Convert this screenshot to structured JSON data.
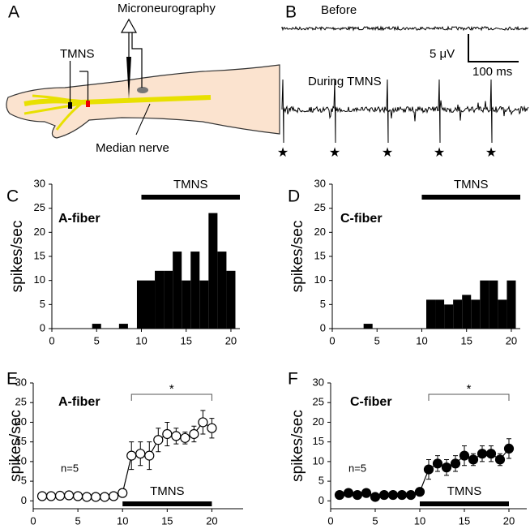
{
  "panel_a": {
    "label": "A",
    "microneurography": "Microneurography",
    "tmns": "TMNS",
    "median_nerve": "Median nerve"
  },
  "panel_b": {
    "label": "B",
    "before": "Before",
    "during": "During TMNS",
    "voltage_scale": "5 μV",
    "time_scale": "100 ms"
  },
  "chart_data": [
    {
      "type": "histogram",
      "panel": "C",
      "annotation": "A-fiber",
      "ylabel": "spikes/sec",
      "color": "#000000",
      "bins": [
        0.5,
        1.5,
        2.5,
        3.5,
        4.5,
        5.5,
        6.5,
        7.5,
        8.5,
        9.5,
        10.5,
        11.5,
        12.5,
        13.5,
        14.5,
        15.5,
        16.5,
        17.5,
        18.5,
        19.5,
        20.5
      ],
      "values": [
        0,
        0,
        0,
        0,
        1,
        0,
        0,
        1,
        0,
        10,
        10,
        12,
        12,
        16,
        10,
        16,
        10,
        24,
        16,
        12
      ],
      "xlim": [
        0,
        21
      ],
      "ylim": [
        0,
        30
      ],
      "xticks": [
        0,
        5,
        10,
        15,
        20
      ],
      "yticks": [
        0,
        5,
        10,
        15,
        20,
        25,
        30
      ],
      "stimulus": {
        "label": "TMNS",
        "range": [
          10,
          21
        ]
      }
    },
    {
      "type": "histogram",
      "panel": "D",
      "annotation": "C-fiber",
      "ylabel": "spikes/sec",
      "color": "#000000",
      "bins": [
        0.5,
        1.5,
        2.5,
        3.5,
        4.5,
        5.5,
        6.5,
        7.5,
        8.5,
        9.5,
        10.5,
        11.5,
        12.5,
        13.5,
        14.5,
        15.5,
        16.5,
        17.5,
        18.5,
        19.5,
        20.5
      ],
      "values": [
        0,
        0,
        0,
        1,
        0,
        0,
        0,
        0,
        0,
        0,
        6,
        6,
        5,
        6,
        7,
        6,
        10,
        10,
        6,
        10
      ],
      "xlim": [
        0,
        21
      ],
      "ylim": [
        0,
        30
      ],
      "xticks": [
        0,
        5,
        10,
        15,
        20
      ],
      "yticks": [
        0,
        5,
        10,
        15,
        20,
        25,
        30
      ],
      "stimulus": {
        "label": "TMNS",
        "range": [
          10,
          21
        ]
      }
    },
    {
      "type": "line",
      "panel": "E",
      "annotation": "A-fiber",
      "n_label": "n=5",
      "ylabel": "spikes/sec",
      "marker": "open",
      "x": [
        1,
        2,
        3,
        4,
        5,
        6,
        7,
        8,
        9,
        10,
        11,
        12,
        13,
        14,
        15,
        16,
        17,
        18,
        19,
        20
      ],
      "values": [
        1.2,
        1.2,
        1.3,
        1.4,
        1.2,
        1,
        1,
        1,
        1.2,
        2,
        11.5,
        12,
        11.5,
        15.5,
        17,
        16.5,
        16,
        17,
        20,
        18.5
      ],
      "errors": [
        0.3,
        0.3,
        0.3,
        0.3,
        0.3,
        0.3,
        0.3,
        0.3,
        0.4,
        1,
        3.5,
        3,
        3.5,
        3,
        3,
        2,
        1.5,
        2,
        3,
        2.5
      ],
      "xlim": [
        0,
        23.5
      ],
      "ylim": [
        -2,
        30
      ],
      "xticks": [
        0,
        5,
        10,
        15,
        20
      ],
      "yticks": [
        0,
        5,
        10,
        15,
        20,
        25,
        30
      ],
      "significance": {
        "label": "*",
        "range": [
          11,
          20
        ]
      },
      "stimulus": {
        "label": "TMNS",
        "range": [
          10,
          20
        ]
      }
    },
    {
      "type": "line",
      "panel": "F",
      "annotation": "C-fiber",
      "n_label": "n=5",
      "ylabel": "spikes/sec",
      "marker": "filled",
      "x": [
        1,
        2,
        3,
        4,
        5,
        6,
        7,
        8,
        9,
        10,
        11,
        12,
        13,
        14,
        15,
        16,
        17,
        18,
        19,
        20
      ],
      "values": [
        1.5,
        2,
        1.5,
        2,
        1,
        1.5,
        1.5,
        1.5,
        1.5,
        2.3,
        8,
        9.5,
        8.5,
        9.5,
        11.5,
        10.5,
        12,
        12,
        10.5,
        13.3
      ],
      "errors": [
        0.5,
        0.4,
        0.5,
        0.6,
        0.4,
        0.4,
        0.4,
        0.4,
        0.4,
        0.6,
        2.5,
        2,
        2,
        2,
        2.5,
        1.5,
        2,
        2,
        1.5,
        2.5
      ],
      "xlim": [
        0,
        22
      ],
      "ylim": [
        -2,
        30
      ],
      "xticks": [
        0,
        5,
        10,
        15,
        20
      ],
      "yticks": [
        0,
        5,
        10,
        15,
        20,
        25,
        30
      ],
      "significance": {
        "label": "*",
        "range": [
          11,
          20
        ]
      },
      "stimulus": {
        "label": "TMNS",
        "range": [
          10,
          20
        ]
      }
    }
  ]
}
